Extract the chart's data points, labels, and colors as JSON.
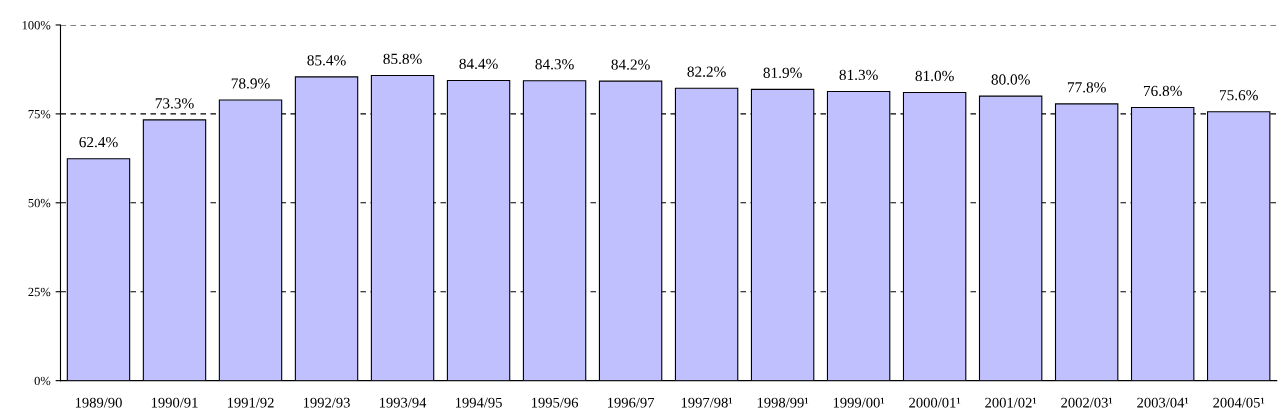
{
  "chart_data": {
    "type": "bar",
    "categories": [
      "1989/90",
      "1990/91",
      "1991/92",
      "1992/93",
      "1993/94",
      "1994/95",
      "1995/96",
      "1996/97",
      "1997/98¹",
      "1998/99¹",
      "1999/00¹",
      "2000/01¹",
      "2001/02¹",
      "2002/03¹",
      "2003/04¹",
      "2004/05¹"
    ],
    "values": [
      62.4,
      73.3,
      78.9,
      85.4,
      85.8,
      84.4,
      84.3,
      84.2,
      82.2,
      81.9,
      81.3,
      81.0,
      80.0,
      77.8,
      76.8,
      75.6
    ],
    "value_labels": [
      "62.4%",
      "73.3%",
      "78.9%",
      "85.4%",
      "85.8%",
      "84.4%",
      "84.3%",
      "84.2%",
      "82.2%",
      "81.9%",
      "81.3%",
      "81.0%",
      "80.0%",
      "77.8%",
      "76.8%",
      "75.6%"
    ],
    "color": "#c0c0ff",
    "ylim": [
      0,
      100
    ],
    "yticks": [
      {
        "value": 0,
        "label": "0%"
      },
      {
        "value": 25,
        "label": "25%"
      },
      {
        "value": 50,
        "label": "50%"
      },
      {
        "value": 75,
        "label": "75%"
      },
      {
        "value": 100,
        "label": "100%"
      }
    ],
    "grid": "y",
    "line_style": "dashed"
  }
}
